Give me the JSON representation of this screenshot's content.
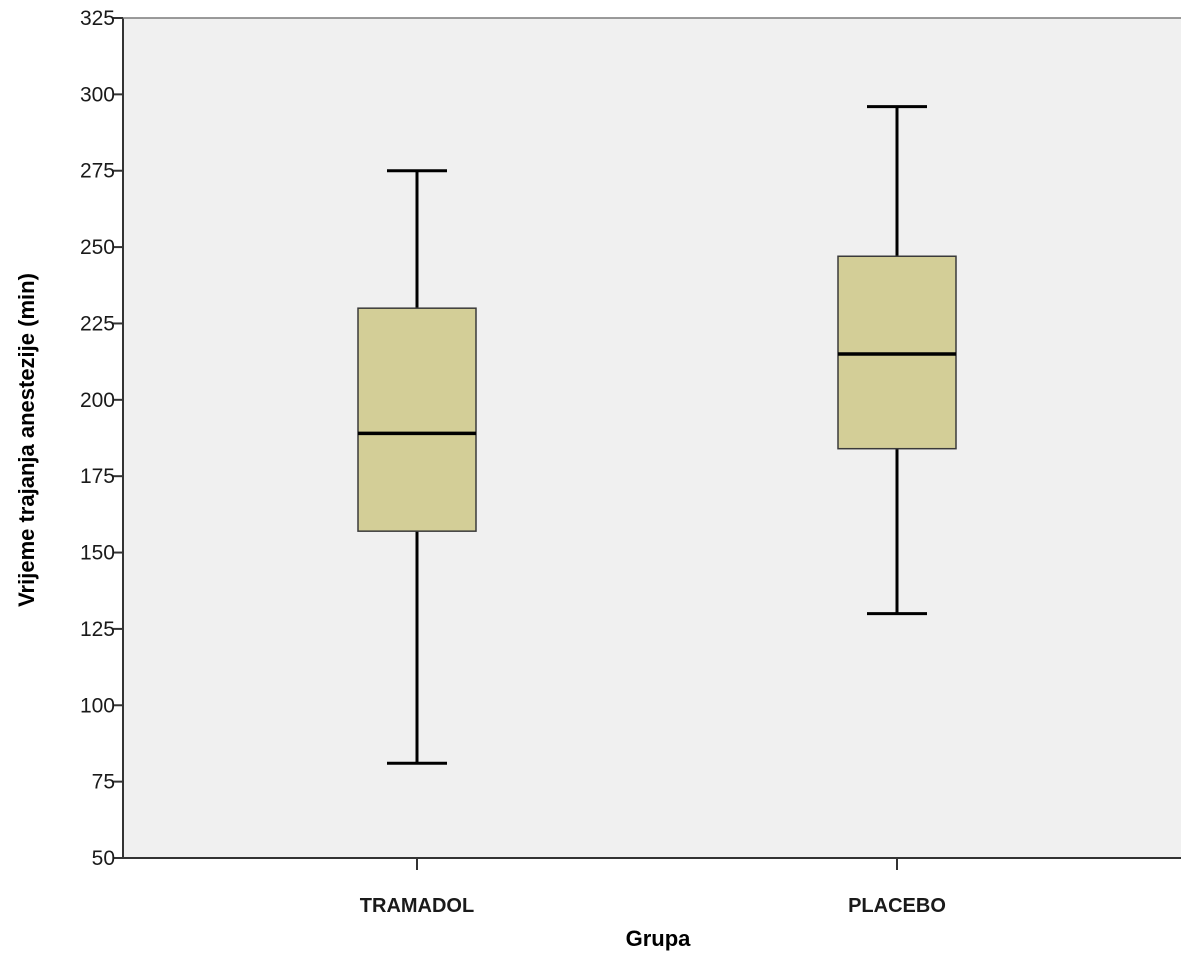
{
  "chart_data": {
    "type": "boxplot",
    "xlabel": "Grupa",
    "ylabel": "Vrijeme trajanja anestezije (min)",
    "ylim": [
      50,
      325
    ],
    "yticks": [
      50,
      75,
      100,
      125,
      150,
      175,
      200,
      225,
      250,
      275,
      300,
      325
    ],
    "grid": false,
    "categories": [
      "TRAMADOL",
      "PLACEBO"
    ],
    "boxes": [
      {
        "category": "TRAMADOL",
        "min": 81,
        "q1": 157,
        "median": 189,
        "q3": 230,
        "max": 275
      },
      {
        "category": "PLACEBO",
        "min": 130,
        "q1": 184,
        "median": 215,
        "q3": 247,
        "max": 296
      }
    ],
    "colors": {
      "plot_background": "#f0f0f0",
      "box_fill": "#d3ce97",
      "box_stroke": "#3a3a3a",
      "whisker": "#000000",
      "median": "#000000",
      "axis": "#333333"
    }
  }
}
